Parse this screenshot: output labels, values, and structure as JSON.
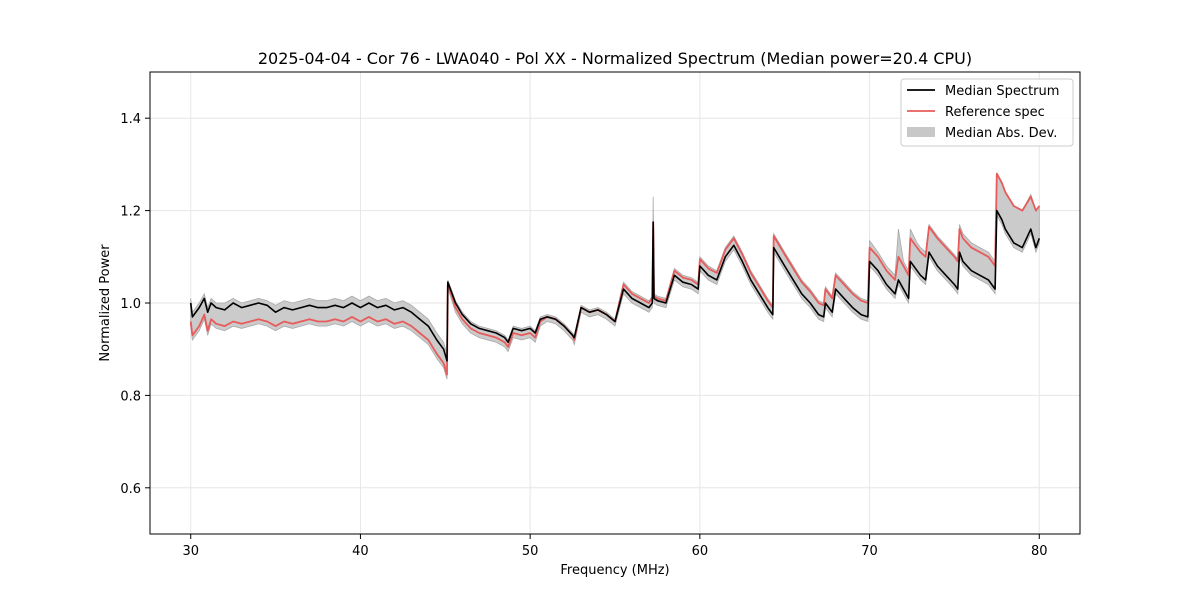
{
  "chart_data": {
    "type": "line",
    "title": "2025-04-04 - Cor 76 - LWA040 - Pol XX - Normalized Spectrum (Median power=20.4 CPU)",
    "xlabel": "Frequency (MHz)",
    "ylabel": "Normalized Power",
    "xlim": [
      27.6,
      82.4
    ],
    "ylim": [
      0.5,
      1.5
    ],
    "xticks": [
      30,
      40,
      50,
      60,
      70,
      80
    ],
    "yticks": [
      0.6,
      0.8,
      1.0,
      1.2,
      1.4
    ],
    "xtick_labels": [
      "30",
      "40",
      "50",
      "60",
      "70",
      "80"
    ],
    "ytick_labels": [
      "0.6",
      "0.8",
      "1.0",
      "1.2",
      "1.4"
    ],
    "grid": true,
    "legend_position": "top-right",
    "legend": [
      {
        "label": "Median Spectrum",
        "kind": "line",
        "color": "#000000"
      },
      {
        "label": "Reference spec",
        "kind": "line",
        "color": "#e85b5b"
      },
      {
        "label": "Median Abs. Dev.",
        "kind": "band",
        "color": "#bdbdbd"
      }
    ],
    "series": [
      {
        "name": "Median Spectrum",
        "color": "#000000",
        "x": [
          30.0,
          30.1,
          30.5,
          30.8,
          31.0,
          31.2,
          31.5,
          32.0,
          32.5,
          33.0,
          33.5,
          34.0,
          34.5,
          35.0,
          35.5,
          36.0,
          36.5,
          37.0,
          37.5,
          38.0,
          38.5,
          39.0,
          39.5,
          40.0,
          40.5,
          41.0,
          41.5,
          42.0,
          42.5,
          43.0,
          43.5,
          44.0,
          44.5,
          44.9,
          45.1,
          45.15,
          45.3,
          45.6,
          46.0,
          46.5,
          47.0,
          47.5,
          48.0,
          48.5,
          48.7,
          49.0,
          49.5,
          50.0,
          50.3,
          50.6,
          51.0,
          51.5,
          52.0,
          52.5,
          52.6,
          53.0,
          53.5,
          54.0,
          54.5,
          55.0,
          55.5,
          56.0,
          56.5,
          57.0,
          57.2,
          57.25,
          57.3,
          57.5,
          58.0,
          58.5,
          59.0,
          59.5,
          59.9,
          60.0,
          60.5,
          61.0,
          61.5,
          62.0,
          62.5,
          63.0,
          63.5,
          64.0,
          64.3,
          64.35,
          65.0,
          65.5,
          66.0,
          66.5,
          67.0,
          67.3,
          67.4,
          67.8,
          68.0,
          68.5,
          69.0,
          69.5,
          69.9,
          70.0,
          70.5,
          71.0,
          71.5,
          71.7,
          72.0,
          72.3,
          72.4,
          72.8,
          73.0,
          73.3,
          73.5,
          74.0,
          74.5,
          75.0,
          75.2,
          75.3,
          75.5,
          76.0,
          76.5,
          77.0,
          77.4,
          77.5,
          77.8,
          78.0,
          78.5,
          79.0,
          79.5,
          79.8,
          80.0
        ],
        "y": [
          1.0,
          0.97,
          0.99,
          1.01,
          0.98,
          1.0,
          0.99,
          0.985,
          1.0,
          0.99,
          0.995,
          1.0,
          0.995,
          0.98,
          0.99,
          0.985,
          0.99,
          0.995,
          0.99,
          0.99,
          0.995,
          0.99,
          1.0,
          0.99,
          1.0,
          0.99,
          0.995,
          0.985,
          0.99,
          0.98,
          0.965,
          0.95,
          0.92,
          0.9,
          0.875,
          1.045,
          1.03,
          1.0,
          0.975,
          0.955,
          0.945,
          0.94,
          0.935,
          0.925,
          0.915,
          0.945,
          0.94,
          0.945,
          0.935,
          0.965,
          0.97,
          0.965,
          0.95,
          0.93,
          0.925,
          0.99,
          0.98,
          0.985,
          0.975,
          0.96,
          1.03,
          1.01,
          1.0,
          0.99,
          1.0,
          1.175,
          1.01,
          1.005,
          1.0,
          1.06,
          1.045,
          1.04,
          1.03,
          1.08,
          1.06,
          1.05,
          1.1,
          1.125,
          1.09,
          1.05,
          1.02,
          0.99,
          0.975,
          1.12,
          1.08,
          1.05,
          1.02,
          1.0,
          0.975,
          0.97,
          1.0,
          0.98,
          1.03,
          1.01,
          0.99,
          0.975,
          0.97,
          1.09,
          1.07,
          1.04,
          1.02,
          1.05,
          1.03,
          1.01,
          1.09,
          1.07,
          1.06,
          1.05,
          1.11,
          1.08,
          1.06,
          1.04,
          1.03,
          1.11,
          1.09,
          1.07,
          1.06,
          1.05,
          1.03,
          1.2,
          1.18,
          1.16,
          1.13,
          1.12,
          1.16,
          1.12,
          1.14
        ]
      },
      {
        "name": "Reference spec",
        "color": "#e85b5b",
        "x": [
          30.0,
          30.1,
          30.5,
          30.8,
          31.0,
          31.2,
          31.5,
          32.0,
          32.5,
          33.0,
          33.5,
          34.0,
          34.5,
          35.0,
          35.5,
          36.0,
          36.5,
          37.0,
          37.5,
          38.0,
          38.5,
          39.0,
          39.5,
          40.0,
          40.5,
          41.0,
          41.5,
          42.0,
          42.5,
          43.0,
          43.5,
          44.0,
          44.5,
          44.9,
          45.1,
          45.15,
          45.3,
          45.6,
          46.0,
          46.5,
          47.0,
          47.5,
          48.0,
          48.5,
          48.7,
          49.0,
          49.5,
          50.0,
          50.3,
          50.6,
          51.0,
          51.5,
          52.0,
          52.5,
          52.6,
          53.0,
          53.5,
          54.0,
          54.5,
          55.0,
          55.5,
          56.0,
          56.5,
          57.0,
          57.2,
          57.25,
          57.3,
          57.5,
          58.0,
          58.5,
          59.0,
          59.5,
          59.9,
          60.0,
          60.5,
          61.0,
          61.5,
          62.0,
          62.5,
          63.0,
          63.5,
          64.0,
          64.3,
          64.35,
          65.0,
          65.5,
          66.0,
          66.5,
          67.0,
          67.3,
          67.4,
          67.8,
          68.0,
          68.5,
          69.0,
          69.5,
          69.9,
          70.0,
          70.5,
          71.0,
          71.5,
          71.7,
          72.0,
          72.3,
          72.4,
          72.8,
          73.0,
          73.3,
          73.5,
          74.0,
          74.5,
          75.0,
          75.2,
          75.3,
          75.5,
          76.0,
          76.5,
          77.0,
          77.4,
          77.5,
          77.8,
          78.0,
          78.5,
          79.0,
          79.5,
          79.8,
          80.0
        ],
        "y": [
          0.96,
          0.93,
          0.95,
          0.975,
          0.94,
          0.965,
          0.955,
          0.95,
          0.96,
          0.955,
          0.96,
          0.965,
          0.96,
          0.95,
          0.96,
          0.955,
          0.96,
          0.965,
          0.96,
          0.96,
          0.965,
          0.96,
          0.97,
          0.96,
          0.97,
          0.96,
          0.965,
          0.955,
          0.96,
          0.95,
          0.935,
          0.92,
          0.89,
          0.87,
          0.845,
          1.04,
          1.025,
          0.99,
          0.965,
          0.945,
          0.935,
          0.93,
          0.925,
          0.915,
          0.905,
          0.935,
          0.93,
          0.935,
          0.925,
          0.96,
          0.97,
          0.965,
          0.95,
          0.93,
          0.92,
          0.99,
          0.98,
          0.985,
          0.975,
          0.96,
          1.04,
          1.02,
          1.01,
          1.0,
          1.01,
          1.175,
          1.015,
          1.01,
          1.005,
          1.07,
          1.055,
          1.05,
          1.04,
          1.095,
          1.075,
          1.065,
          1.115,
          1.14,
          1.105,
          1.065,
          1.035,
          1.005,
          0.99,
          1.145,
          1.105,
          1.075,
          1.045,
          1.025,
          1.0,
          0.995,
          1.03,
          1.01,
          1.06,
          1.04,
          1.02,
          1.005,
          1.0,
          1.12,
          1.1,
          1.07,
          1.05,
          1.1,
          1.08,
          1.06,
          1.14,
          1.12,
          1.11,
          1.1,
          1.165,
          1.14,
          1.12,
          1.1,
          1.09,
          1.16,
          1.14,
          1.12,
          1.11,
          1.1,
          1.08,
          1.28,
          1.26,
          1.24,
          1.21,
          1.2,
          1.23,
          1.2,
          1.21
        ]
      },
      {
        "name": "Median Abs. Dev.",
        "type": "band",
        "color": "#bdbdbd",
        "x": [
          30.0,
          30.1,
          30.5,
          30.8,
          31.0,
          31.2,
          31.5,
          32.0,
          32.5,
          33.0,
          33.5,
          34.0,
          34.5,
          35.0,
          35.5,
          36.0,
          36.5,
          37.0,
          37.5,
          38.0,
          38.5,
          39.0,
          39.5,
          40.0,
          40.5,
          41.0,
          41.5,
          42.0,
          42.5,
          43.0,
          43.5,
          44.0,
          44.5,
          44.9,
          45.1,
          45.15,
          45.3,
          45.6,
          46.0,
          46.5,
          47.0,
          47.5,
          48.0,
          48.5,
          48.7,
          49.0,
          49.5,
          50.0,
          50.3,
          50.6,
          51.0,
          51.5,
          52.0,
          52.5,
          52.6,
          53.0,
          53.5,
          54.0,
          54.5,
          55.0,
          55.5,
          56.0,
          56.5,
          57.0,
          57.2,
          57.25,
          57.3,
          57.5,
          58.0,
          58.5,
          59.0,
          59.5,
          59.9,
          60.0,
          60.5,
          61.0,
          61.5,
          62.0,
          62.5,
          63.0,
          63.5,
          64.0,
          64.3,
          64.35,
          65.0,
          65.5,
          66.0,
          66.5,
          67.0,
          67.3,
          67.4,
          67.8,
          68.0,
          68.5,
          69.0,
          69.5,
          69.9,
          70.0,
          70.5,
          71.0,
          71.5,
          71.7,
          72.0,
          72.3,
          72.4,
          72.8,
          73.0,
          73.3,
          73.5,
          74.0,
          74.5,
          75.0,
          75.2,
          75.3,
          75.5,
          76.0,
          76.5,
          77.0,
          77.4,
          77.5,
          77.8,
          78.0,
          78.5,
          79.0,
          79.5,
          79.8,
          80.0
        ],
        "upper": [
          1.01,
          0.98,
          1.0,
          1.02,
          0.99,
          1.01,
          1.0,
          1.0,
          1.01,
          1.0,
          1.005,
          1.01,
          1.005,
          0.995,
          1.005,
          1.0,
          1.005,
          1.01,
          1.005,
          1.005,
          1.01,
          1.005,
          1.015,
          1.005,
          1.015,
          1.005,
          1.01,
          1.0,
          1.005,
          0.995,
          0.98,
          0.965,
          0.935,
          0.915,
          0.89,
          1.05,
          1.035,
          1.005,
          0.98,
          0.96,
          0.95,
          0.945,
          0.94,
          0.93,
          0.92,
          0.95,
          0.945,
          0.95,
          0.94,
          0.97,
          0.975,
          0.97,
          0.955,
          0.935,
          0.93,
          0.995,
          0.985,
          0.99,
          0.98,
          0.965,
          1.045,
          1.025,
          1.015,
          1.005,
          1.015,
          1.23,
          1.02,
          1.015,
          1.01,
          1.075,
          1.06,
          1.055,
          1.045,
          1.1,
          1.08,
          1.07,
          1.12,
          1.145,
          1.11,
          1.07,
          1.04,
          1.01,
          0.995,
          1.15,
          1.11,
          1.08,
          1.05,
          1.03,
          1.005,
          1.0,
          1.035,
          1.015,
          1.065,
          1.045,
          1.025,
          1.01,
          1.005,
          1.135,
          1.11,
          1.08,
          1.06,
          1.16,
          1.09,
          1.07,
          1.16,
          1.13,
          1.12,
          1.11,
          1.17,
          1.145,
          1.125,
          1.105,
          1.095,
          1.17,
          1.15,
          1.13,
          1.12,
          1.11,
          1.09,
          1.28,
          1.26,
          1.24,
          1.21,
          1.2,
          1.235,
          1.2,
          1.21
        ]
      }
    ]
  },
  "legend_swatch_colors": {
    "median": "#000000",
    "reference": "#e85b5b",
    "band_fill": "#c8c8c8",
    "band_edge": "#a8a8a8"
  }
}
